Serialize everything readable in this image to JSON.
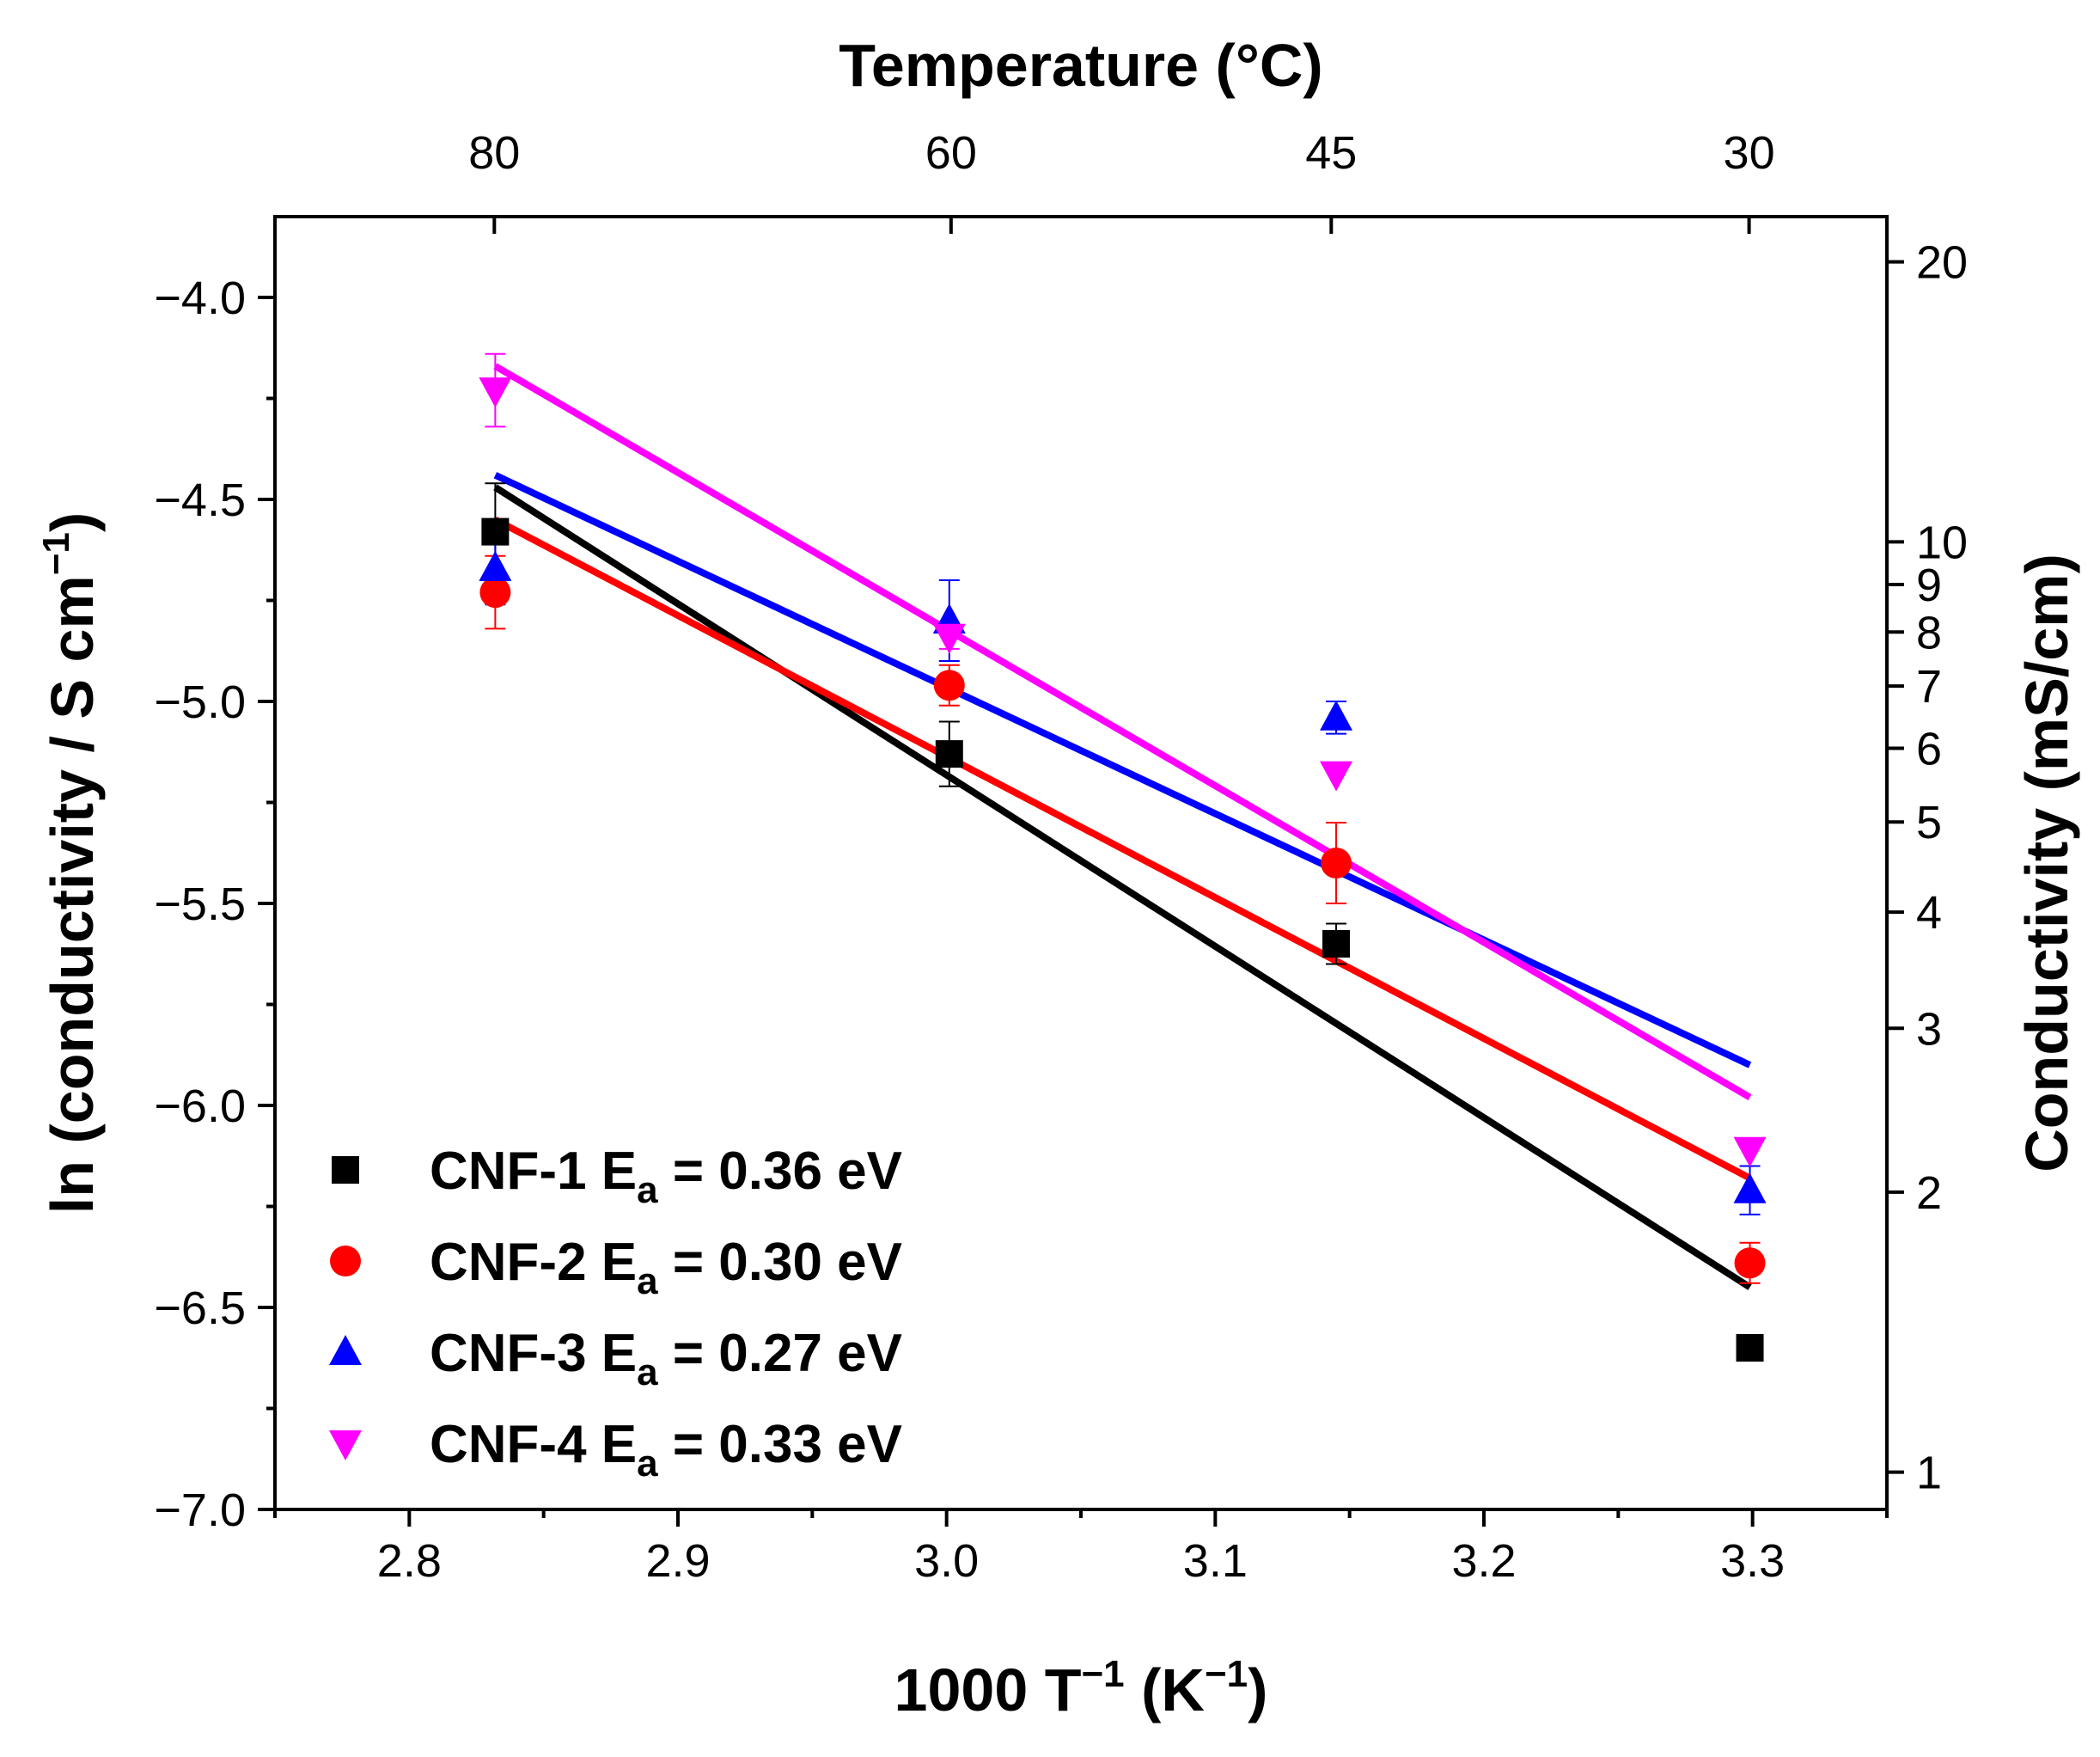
{
  "chart_data": {
    "type": "scatter",
    "x_axis": {
      "label_prefix": "1000 T",
      "label_sup1": "−1",
      "label_mid": " (K",
      "label_sup2": "−1",
      "label_suffix": ")",
      "range": [
        2.75,
        3.35
      ],
      "ticks": [
        2.8,
        2.9,
        3.0,
        3.1,
        3.2,
        3.3
      ],
      "tick_labels": [
        "2.8",
        "2.9",
        "3.0",
        "3.1",
        "3.2",
        "3.3"
      ]
    },
    "y_axis": {
      "label_prefix": "ln (conductivity / S cm",
      "label_sup": "−1",
      "label_suffix": ")",
      "range": [
        -7.0,
        -3.8
      ],
      "ticks": [
        -7.0,
        -6.5,
        -6.0,
        -5.5,
        -5.0,
        -4.5,
        -4.0
      ],
      "tick_labels": [
        "−7.0",
        "−6.5",
        "−6.0",
        "−5.5",
        "−5.0",
        "−4.5",
        "−4.0"
      ]
    },
    "top_axis": {
      "label": "Temperature (°C)",
      "temperatures": [
        80,
        60,
        45,
        30
      ],
      "tick_labels": [
        "80",
        "60",
        "45",
        "30"
      ]
    },
    "right_axis": {
      "label": "Conductivity (mS/cm)",
      "scale": "log",
      "ticks": [
        1,
        2,
        3,
        4,
        5,
        6,
        7,
        8,
        9,
        10,
        20
      ],
      "tick_labels": [
        "1",
        "2",
        "3",
        "4",
        "5",
        "6",
        "7",
        "8",
        "9",
        "10",
        "20"
      ]
    },
    "legend_position": "bottom-left",
    "series": [
      {
        "name": "CNF-1",
        "legend_prefix": "CNF-1 E",
        "legend_sub": "a",
        "legend_suffix": " = 0.36 eV",
        "color": "#000000",
        "marker": "square",
        "x": [
          2.832,
          3.001,
          3.145,
          3.299
        ],
        "y": [
          -4.58,
          -5.13,
          -5.6,
          -6.6
        ],
        "err": [
          0.12,
          0.08,
          0.05,
          0.0
        ],
        "fit": {
          "x": [
            2.832,
            3.299
          ],
          "y": [
            -4.47,
            -6.45
          ]
        }
      },
      {
        "name": "CNF-2",
        "legend_prefix": "CNF-2 E",
        "legend_sub": "a",
        "legend_suffix": " = 0.30 eV",
        "color": "#ff0000",
        "marker": "circle",
        "x": [
          2.832,
          3.001,
          3.145,
          3.299
        ],
        "y": [
          -4.73,
          -4.96,
          -5.4,
          -6.39
        ],
        "err": [
          0.09,
          0.05,
          0.1,
          0.05
        ],
        "fit": {
          "x": [
            2.832,
            3.299
          ],
          "y": [
            -4.55,
            -6.18
          ]
        }
      },
      {
        "name": "CNF-3",
        "legend_prefix": "CNF-3 E",
        "legend_sub": "a",
        "legend_suffix": " = 0.27 eV",
        "color": "#0000ff",
        "marker": "triangle-up",
        "x": [
          2.832,
          3.001,
          3.145,
          3.299
        ],
        "y": [
          -4.67,
          -4.8,
          -5.04,
          -6.21
        ],
        "err": [
          0.09,
          0.1,
          0.04,
          0.06
        ],
        "fit": {
          "x": [
            2.832,
            3.299
          ],
          "y": [
            -4.44,
            -5.9
          ]
        }
      },
      {
        "name": "CNF-4",
        "legend_prefix": "CNF-4 E",
        "legend_sub": "a",
        "legend_suffix": " = 0.33 eV",
        "color": "#ff00ff",
        "marker": "triangle-down",
        "x": [
          2.832,
          3.001,
          3.145,
          3.299
        ],
        "y": [
          -4.23,
          -4.84,
          -5.18,
          -6.11
        ],
        "err": [
          0.09,
          0.03,
          0.0,
          0.0
        ],
        "fit": {
          "x": [
            2.832,
            3.299
          ],
          "y": [
            -4.17,
            -5.98
          ]
        }
      }
    ]
  }
}
